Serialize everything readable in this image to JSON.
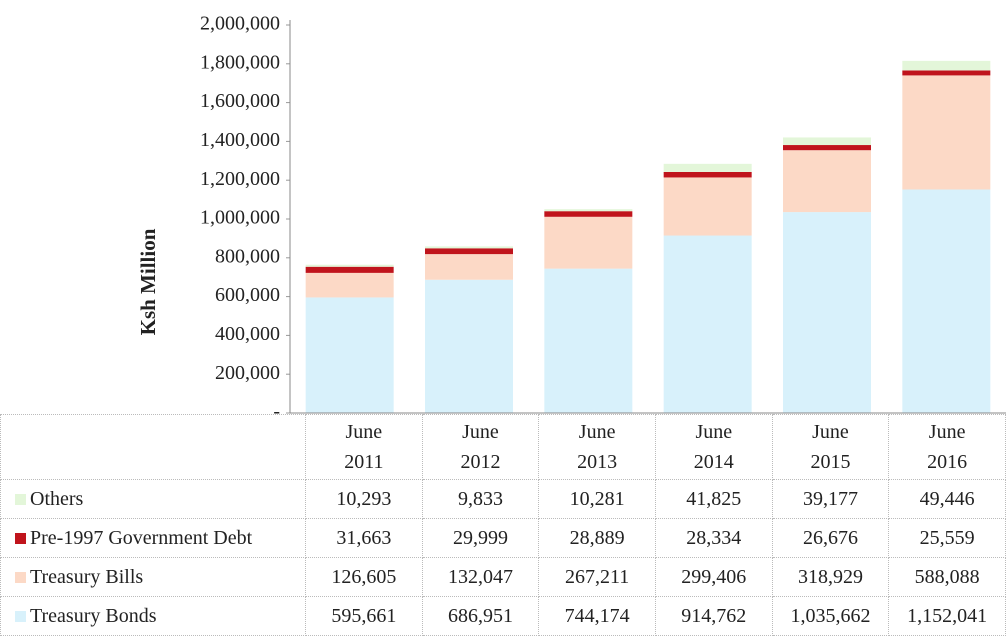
{
  "chart_data": {
    "type": "stacked_bar",
    "y_label": "Ksh Million",
    "categories": [
      "June 2011",
      "June 2012",
      "June 2013",
      "June 2014",
      "June 2015",
      "June 2016"
    ],
    "series": [
      {
        "name": "Others",
        "color": "#e3f6d9",
        "values": [
          10293,
          9833,
          10281,
          41825,
          39177,
          49446
        ],
        "value_labels": [
          "10,293",
          "9,833",
          "10,281",
          "41,825",
          "39,177",
          "49,446"
        ]
      },
      {
        "name": "Pre-1997 Government Debt",
        "color": "#c0141c",
        "values": [
          31663,
          29999,
          28889,
          28334,
          26676,
          25559
        ],
        "value_labels": [
          "31,663",
          "29,999",
          "28,889",
          "28,334",
          "26,676",
          "25,559"
        ]
      },
      {
        "name": "Treasury Bills",
        "color": "#fcd9c6",
        "values": [
          126605,
          132047,
          267211,
          299406,
          318929,
          588088
        ],
        "value_labels": [
          "126,605",
          "132,047",
          "267,211",
          "299,406",
          "318,929",
          "588,088"
        ]
      },
      {
        "name": "Treasury Bonds",
        "color": "#d8f1fb",
        "values": [
          595661,
          686951,
          744174,
          914762,
          1035662,
          1152041
        ],
        "value_labels": [
          "595,661",
          "686,951",
          "744,174",
          "914,762",
          "1,035,662",
          "1,152,041"
        ]
      }
    ],
    "ylim": [
      0,
      2000000
    ],
    "yticks": [
      {
        "value": 0,
        "label": "-"
      },
      {
        "value": 200000,
        "label": "200,000"
      },
      {
        "value": 400000,
        "label": "400,000"
      },
      {
        "value": 600000,
        "label": "600,000"
      },
      {
        "value": 800000,
        "label": "800,000"
      },
      {
        "value": 1000000,
        "label": "1,000,000"
      },
      {
        "value": 1200000,
        "label": "1,200,000"
      },
      {
        "value": 1400000,
        "label": "1,400,000"
      },
      {
        "value": 1600000,
        "label": "1,600,000"
      },
      {
        "value": 1800000,
        "label": "1,800,000"
      },
      {
        "value": 2000000,
        "label": "2,000,000"
      }
    ]
  }
}
